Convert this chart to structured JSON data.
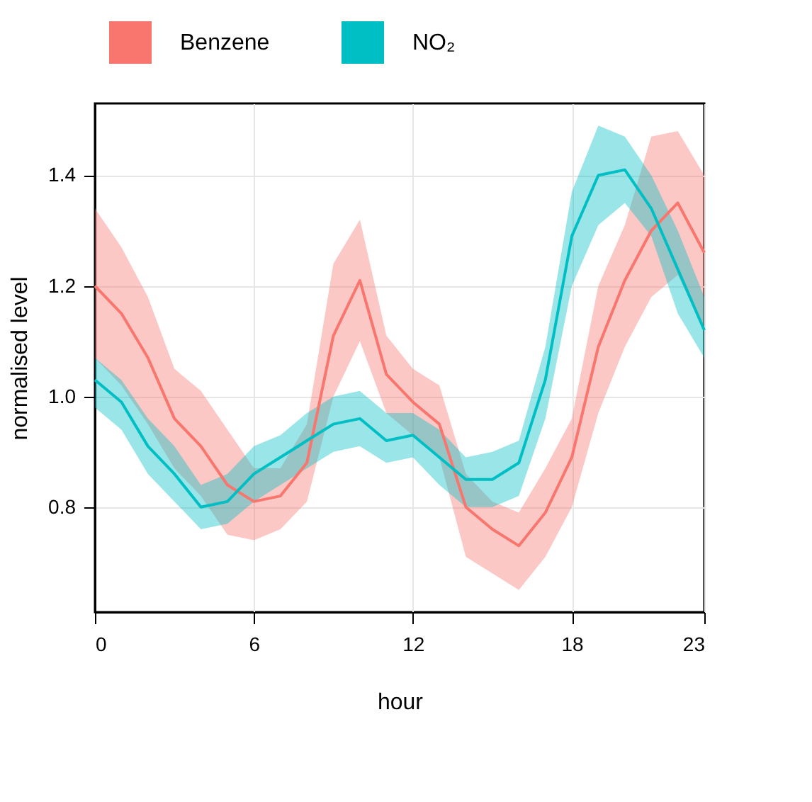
{
  "chart_data": {
    "type": "line",
    "xlabel": "hour",
    "ylabel": "normalised level",
    "x": [
      0,
      1,
      2,
      3,
      4,
      5,
      6,
      7,
      8,
      9,
      10,
      11,
      12,
      13,
      14,
      15,
      16,
      17,
      18,
      19,
      20,
      21,
      22,
      23
    ],
    "xlim": [
      0,
      23
    ],
    "xticks": [
      0,
      6,
      12,
      18,
      23
    ],
    "ylim": [
      0.61,
      1.53
    ],
    "yticks": [
      0.8,
      {
        "value": 1,
        "label": "1.0"
      },
      1.2,
      1.4
    ],
    "grid": true,
    "legend": "top",
    "line_style": "solid",
    "marker": "none",
    "series": [
      {
        "name": "Benzene",
        "color": "#f8766d",
        "values": [
          1.2,
          1.15,
          1.07,
          0.96,
          0.91,
          0.84,
          0.81,
          0.82,
          0.88,
          1.11,
          1.21,
          1.04,
          0.99,
          0.95,
          0.8,
          0.76,
          0.73,
          0.79,
          0.89,
          1.09,
          1.21,
          1.3,
          1.35,
          1.26
        ],
        "lower": [
          1.07,
          1.02,
          0.95,
          0.87,
          0.82,
          0.75,
          0.74,
          0.76,
          0.81,
          1.0,
          1.1,
          0.97,
          0.93,
          0.89,
          0.71,
          0.68,
          0.65,
          0.71,
          0.8,
          0.97,
          1.09,
          1.18,
          1.22,
          1.12
        ],
        "upper": [
          1.34,
          1.27,
          1.18,
          1.05,
          1.01,
          0.94,
          0.87,
          0.87,
          0.95,
          1.24,
          1.32,
          1.11,
          1.05,
          1.02,
          0.86,
          0.81,
          0.79,
          0.87,
          0.96,
          1.2,
          1.31,
          1.47,
          1.48,
          1.4
        ]
      },
      {
        "name": "NO₂",
        "color": "#00bfc4",
        "values": [
          1.03,
          0.99,
          0.91,
          0.86,
          0.8,
          0.81,
          0.86,
          0.89,
          0.92,
          0.95,
          0.96,
          0.92,
          0.93,
          0.89,
          0.85,
          0.85,
          0.88,
          1.03,
          1.29,
          1.4,
          1.41,
          1.34,
          1.23,
          1.12
        ],
        "lower": [
          0.98,
          0.94,
          0.86,
          0.81,
          0.76,
          0.77,
          0.81,
          0.84,
          0.87,
          0.9,
          0.91,
          0.88,
          0.89,
          0.84,
          0.8,
          0.8,
          0.82,
          0.96,
          1.2,
          1.31,
          1.35,
          1.29,
          1.15,
          1.07
        ],
        "upper": [
          1.07,
          1.03,
          0.96,
          0.91,
          0.84,
          0.86,
          0.91,
          0.93,
          0.97,
          1.0,
          1.01,
          0.97,
          0.97,
          0.94,
          0.89,
          0.9,
          0.92,
          1.09,
          1.37,
          1.49,
          1.47,
          1.4,
          1.3,
          1.18
        ]
      }
    ]
  }
}
